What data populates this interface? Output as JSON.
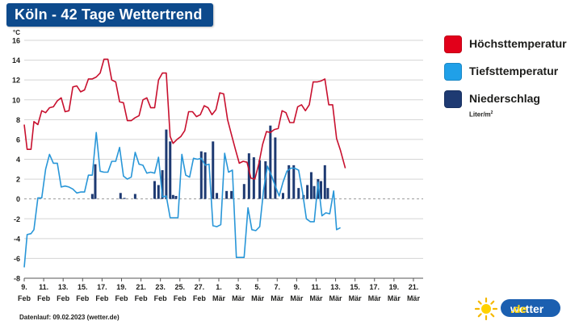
{
  "header": {
    "title": "Köln - 42 Tage Wettertrend"
  },
  "legend": {
    "items": [
      {
        "label": "Höchsttemperatur",
        "color": "#e2001a"
      },
      {
        "label": "Tiefsttemperatur",
        "color": "#20a0e8"
      },
      {
        "label": "Niederschlag",
        "color": "#1e3a72"
      }
    ],
    "unit_text": "Liter/m",
    "unit_sup": "2"
  },
  "footer": {
    "text": "Datenlauf: 09.02.2023 (wetter.de)"
  },
  "brand": {
    "name": "wetter",
    "suffix": ".de"
  },
  "chart_data": {
    "type": "line",
    "y_unit_label": "°C",
    "ylim": [
      -8,
      16
    ],
    "y_ticks": [
      -8,
      -6,
      -4,
      -2,
      0,
      2,
      4,
      6,
      8,
      10,
      12,
      14,
      16
    ],
    "grid": true,
    "x_start_index": 0,
    "x_end_index": 41,
    "x_ticks": [
      {
        "index": 0,
        "day": "9.",
        "month": "Feb"
      },
      {
        "index": 2,
        "day": "11.",
        "month": "Feb"
      },
      {
        "index": 4,
        "day": "13.",
        "month": "Feb"
      },
      {
        "index": 6,
        "day": "15.",
        "month": "Feb"
      },
      {
        "index": 8,
        "day": "17.",
        "month": "Feb"
      },
      {
        "index": 10,
        "day": "19.",
        "month": "Feb"
      },
      {
        "index": 12,
        "day": "21.",
        "month": "Feb"
      },
      {
        "index": 14,
        "day": "23.",
        "month": "Feb"
      },
      {
        "index": 16,
        "day": "25.",
        "month": "Feb"
      },
      {
        "index": 18,
        "day": "27.",
        "month": "Feb"
      },
      {
        "index": 20,
        "day": "1.",
        "month": "Mär"
      },
      {
        "index": 22,
        "day": "3.",
        "month": "Mär"
      },
      {
        "index": 24,
        "day": "5.",
        "month": "Mär"
      },
      {
        "index": 26,
        "day": "7.",
        "month": "Mär"
      },
      {
        "index": 28,
        "day": "9.",
        "month": "Mär"
      },
      {
        "index": 30,
        "day": "11.",
        "month": "Mär"
      },
      {
        "index": 32,
        "day": "13.",
        "month": "Mär"
      },
      {
        "index": 34,
        "day": "15.",
        "month": "Mär"
      },
      {
        "index": 36,
        "day": "17.",
        "month": "Mär"
      },
      {
        "index": 38,
        "day": "19.",
        "month": "Mär"
      },
      {
        "index": 40,
        "day": "21.",
        "month": "Mär"
      }
    ],
    "series": [
      {
        "name": "Höchsttemperatur",
        "color": "#c8102e",
        "points": [
          [
            0,
            7.5
          ],
          [
            0.3,
            5
          ],
          [
            0.7,
            5
          ],
          [
            1,
            7.8
          ],
          [
            1.4,
            7.5
          ],
          [
            1.8,
            8.9
          ],
          [
            2.2,
            8.7
          ],
          [
            2.6,
            9.2
          ],
          [
            3,
            9.3
          ],
          [
            3.4,
            9.9
          ],
          [
            3.8,
            10.2
          ],
          [
            4.2,
            8.8
          ],
          [
            4.6,
            8.9
          ],
          [
            5,
            11.3
          ],
          [
            5.4,
            11.4
          ],
          [
            5.8,
            10.8
          ],
          [
            6.2,
            11
          ],
          [
            6.6,
            12.1
          ],
          [
            7,
            12.1
          ],
          [
            7.4,
            12.3
          ],
          [
            7.8,
            12.7
          ],
          [
            8.2,
            14.1
          ],
          [
            8.6,
            14.1
          ],
          [
            9,
            12
          ],
          [
            9.4,
            11.8
          ],
          [
            9.8,
            9.8
          ],
          [
            10.2,
            9.7
          ],
          [
            10.6,
            7.9
          ],
          [
            11,
            7.9
          ],
          [
            11.4,
            8.2
          ],
          [
            11.8,
            8.4
          ],
          [
            12.2,
            10
          ],
          [
            12.6,
            10.2
          ],
          [
            13,
            9.2
          ],
          [
            13.4,
            9.2
          ],
          [
            13.8,
            12
          ],
          [
            14.2,
            12.7
          ],
          [
            14.6,
            12.7
          ],
          [
            15,
            6.3
          ],
          [
            15.3,
            5.6
          ],
          [
            15.7,
            6
          ],
          [
            16.1,
            6.3
          ],
          [
            16.5,
            6.9
          ],
          [
            16.9,
            8.8
          ],
          [
            17.3,
            8.8
          ],
          [
            17.7,
            8.3
          ],
          [
            18.1,
            8.5
          ],
          [
            18.5,
            9.4
          ],
          [
            18.9,
            9.2
          ],
          [
            19.3,
            8.5
          ],
          [
            19.7,
            9
          ],
          [
            20.1,
            10.7
          ],
          [
            20.5,
            10.6
          ],
          [
            20.9,
            8
          ],
          [
            21.3,
            6.5
          ],
          [
            21.7,
            5
          ],
          [
            22.1,
            3.6
          ],
          [
            22.5,
            3.8
          ],
          [
            22.9,
            3.7
          ],
          [
            23.3,
            2.1
          ],
          [
            23.7,
            2
          ],
          [
            24.1,
            3.5
          ],
          [
            24.5,
            5.5
          ],
          [
            24.9,
            6.8
          ],
          [
            25.3,
            6.7
          ],
          [
            25.7,
            7
          ],
          [
            26.1,
            7.1
          ],
          [
            26.5,
            8.9
          ],
          [
            26.9,
            8.7
          ],
          [
            27.3,
            7.7
          ],
          [
            27.7,
            7.7
          ],
          [
            28.1,
            9.3
          ],
          [
            28.5,
            9.5
          ],
          [
            28.9,
            8.9
          ],
          [
            29.3,
            9.5
          ],
          [
            29.7,
            11.8
          ],
          [
            30.1,
            11.8
          ],
          [
            30.5,
            11.9
          ],
          [
            30.9,
            12.1
          ],
          [
            31.3,
            9.5
          ],
          [
            31.7,
            9.5
          ],
          [
            32.1,
            6.1
          ],
          [
            32.5,
            4.9
          ],
          [
            33,
            3.1
          ]
        ]
      },
      {
        "name": "Tiefsttemperatur",
        "color": "#2896d8",
        "points": [
          [
            0,
            -6.9
          ],
          [
            0.3,
            -3.6
          ],
          [
            0.7,
            -3.5
          ],
          [
            1,
            -3.1
          ],
          [
            1.4,
            0.1
          ],
          [
            1.8,
            0.1
          ],
          [
            2.2,
            3
          ],
          [
            2.6,
            4.5
          ],
          [
            3,
            3.6
          ],
          [
            3.4,
            3.6
          ],
          [
            3.8,
            1.2
          ],
          [
            4.2,
            1.3
          ],
          [
            4.6,
            1.2
          ],
          [
            5,
            1
          ],
          [
            5.4,
            0.6
          ],
          [
            5.8,
            0.7
          ],
          [
            6.2,
            0.7
          ],
          [
            6.6,
            2.4
          ],
          [
            7,
            2.4
          ],
          [
            7.4,
            6.7
          ],
          [
            7.8,
            2.8
          ],
          [
            8.2,
            2.7
          ],
          [
            8.6,
            2.7
          ],
          [
            9,
            3.8
          ],
          [
            9.4,
            3.8
          ],
          [
            9.8,
            5.2
          ],
          [
            10.2,
            2.3
          ],
          [
            10.6,
            2
          ],
          [
            11,
            2.2
          ],
          [
            11.4,
            4.7
          ],
          [
            11.8,
            3.5
          ],
          [
            12.2,
            3.4
          ],
          [
            12.6,
            2.6
          ],
          [
            13,
            2.7
          ],
          [
            13.4,
            2.6
          ],
          [
            13.8,
            4.2
          ],
          [
            14.2,
            0.2
          ],
          [
            14.6,
            0.3
          ],
          [
            15,
            -1.9
          ],
          [
            15.4,
            -1.9
          ],
          [
            15.8,
            -1.9
          ],
          [
            16.2,
            4.5
          ],
          [
            16.6,
            2.4
          ],
          [
            17,
            2.2
          ],
          [
            17.4,
            4.1
          ],
          [
            17.8,
            4
          ],
          [
            18.2,
            4.1
          ],
          [
            18.6,
            3.4
          ],
          [
            19,
            3.5
          ],
          [
            19.4,
            -2.7
          ],
          [
            19.8,
            -2.8
          ],
          [
            20.2,
            -2.6
          ],
          [
            20.6,
            4.6
          ],
          [
            21,
            2.7
          ],
          [
            21.4,
            2.9
          ],
          [
            21.8,
            -5.9
          ],
          [
            22.2,
            -5.9
          ],
          [
            22.6,
            -5.9
          ],
          [
            23,
            -0.9
          ],
          [
            23.4,
            -3.1
          ],
          [
            23.8,
            -3.2
          ],
          [
            24.2,
            -2.8
          ],
          [
            24.6,
            0.9
          ],
          [
            25,
            3.3
          ],
          [
            25.4,
            2.4
          ],
          [
            25.8,
            1.3
          ],
          [
            26.2,
            0.3
          ],
          [
            26.6,
            1.7
          ],
          [
            27,
            2.8
          ],
          [
            27.4,
            3.1
          ],
          [
            27.8,
            3.1
          ],
          [
            28.2,
            2.9
          ],
          [
            28.6,
            0.7
          ],
          [
            29,
            -2
          ],
          [
            29.4,
            -2.3
          ],
          [
            29.8,
            -2.3
          ],
          [
            30.2,
            1.7
          ],
          [
            30.6,
            -1.7
          ],
          [
            31,
            -1.4
          ],
          [
            31.4,
            -1.5
          ],
          [
            31.8,
            0.8
          ],
          [
            32.1,
            -3.1
          ],
          [
            32.5,
            -2.9
          ]
        ]
      }
    ],
    "precipitation": {
      "name": "Niederschlag",
      "color": "#1e3a72",
      "unit": "Liter/m²",
      "bars": [
        [
          7,
          0.5
        ],
        [
          7.3,
          3.5
        ],
        [
          9.9,
          0.6
        ],
        [
          10.3,
          0.1
        ],
        [
          11.4,
          0.5
        ],
        [
          13.4,
          1.8
        ],
        [
          13.8,
          1.4
        ],
        [
          14.2,
          2.9
        ],
        [
          14.6,
          7
        ],
        [
          15,
          5.8
        ],
        [
          15.3,
          0.4
        ],
        [
          15.6,
          0.3
        ],
        [
          18.2,
          4.8
        ],
        [
          18.6,
          4.7
        ],
        [
          19.4,
          5.8
        ],
        [
          19.8,
          0.6
        ],
        [
          20.8,
          0.8
        ],
        [
          21.3,
          0.8
        ],
        [
          22.6,
          1.5
        ],
        [
          23.1,
          4.6
        ],
        [
          23.6,
          4.2
        ],
        [
          24.2,
          3.9
        ],
        [
          24.8,
          3.8
        ],
        [
          25.3,
          7.4
        ],
        [
          25.8,
          6.2
        ],
        [
          26.6,
          0.6
        ],
        [
          27.2,
          3.4
        ],
        [
          27.7,
          3.4
        ],
        [
          28.2,
          1.1
        ],
        [
          28.7,
          0.4
        ],
        [
          29.1,
          1.4
        ],
        [
          29.5,
          2.7
        ],
        [
          29.8,
          1.3
        ],
        [
          30.2,
          2
        ],
        [
          30.5,
          1.8
        ],
        [
          30.9,
          3.4
        ],
        [
          31.2,
          1.1
        ]
      ]
    }
  }
}
